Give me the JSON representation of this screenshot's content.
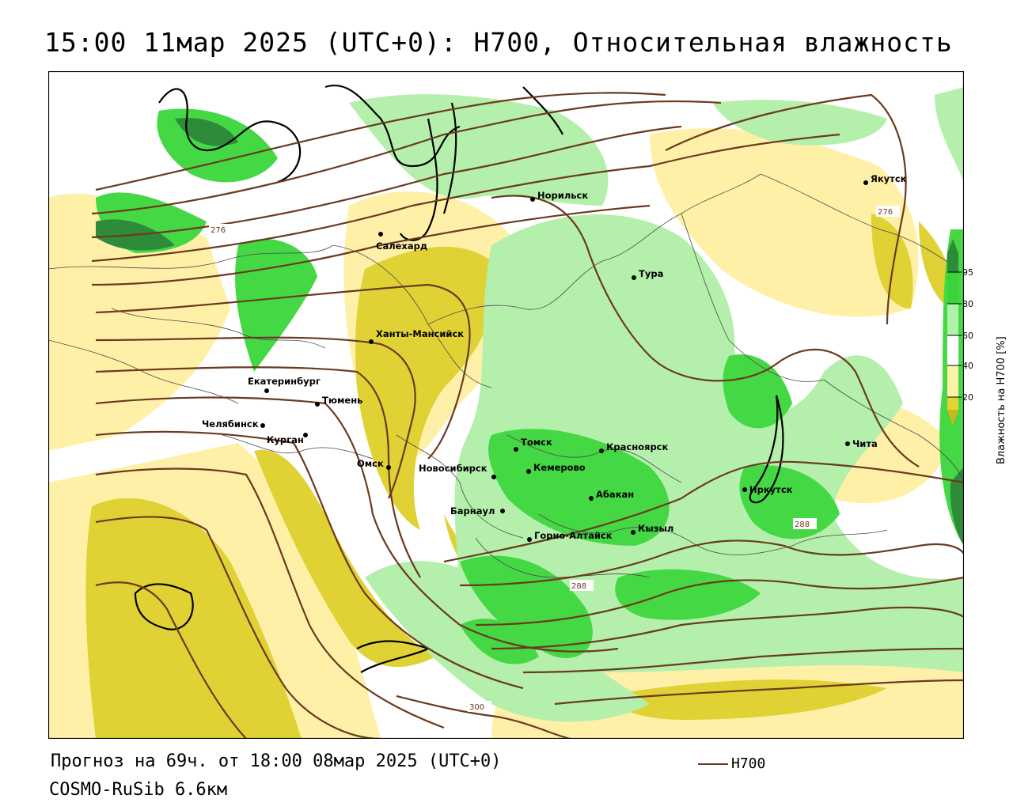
{
  "title": "15:00 11мар 2025 (UTC+0): H700, Относительная влажность",
  "footer": {
    "forecast": "Прогноз на 69ч. от 18:00 08мар 2025 (UTC+0)",
    "model": "COSMO-RuSib 6.6км",
    "contour_legend": "H700"
  },
  "legend": {
    "title": "Влажность на H700 [%]",
    "ticks": [
      "95",
      "80",
      "60",
      "40",
      "20"
    ],
    "colors": [
      "#2e8b3a",
      "#3ad43a",
      "#aef2a8",
      "#ffffff",
      "#fff2a8",
      "#e3d432",
      "#c9b81c"
    ]
  },
  "colors": {
    "contour": "#6b3a1f",
    "dark_green": "#2e8b3a",
    "green": "#45d845",
    "light_green": "#b4f0ac",
    "light_yellow": "#fff0a8",
    "yellow": "#e0d235"
  },
  "contour_labels": [
    "276",
    "276",
    "288",
    "288",
    "300"
  ],
  "cities": [
    {
      "name": "Якутск"
    },
    {
      "name": "Норильск"
    },
    {
      "name": "Салехард"
    },
    {
      "name": "Тура"
    },
    {
      "name": "Ханты-Мансийск"
    },
    {
      "name": "Екатеринбург"
    },
    {
      "name": "Тюмень"
    },
    {
      "name": "Челябинск"
    },
    {
      "name": "Курган"
    },
    {
      "name": "Омск"
    },
    {
      "name": "Новосибирск"
    },
    {
      "name": "Томск"
    },
    {
      "name": "Кемерово"
    },
    {
      "name": "Красноярск"
    },
    {
      "name": "Барнаул"
    },
    {
      "name": "Абакан"
    },
    {
      "name": "Горно-Алтайск"
    },
    {
      "name": "Кызыл"
    },
    {
      "name": "Иркутск"
    },
    {
      "name": "Чита"
    }
  ]
}
